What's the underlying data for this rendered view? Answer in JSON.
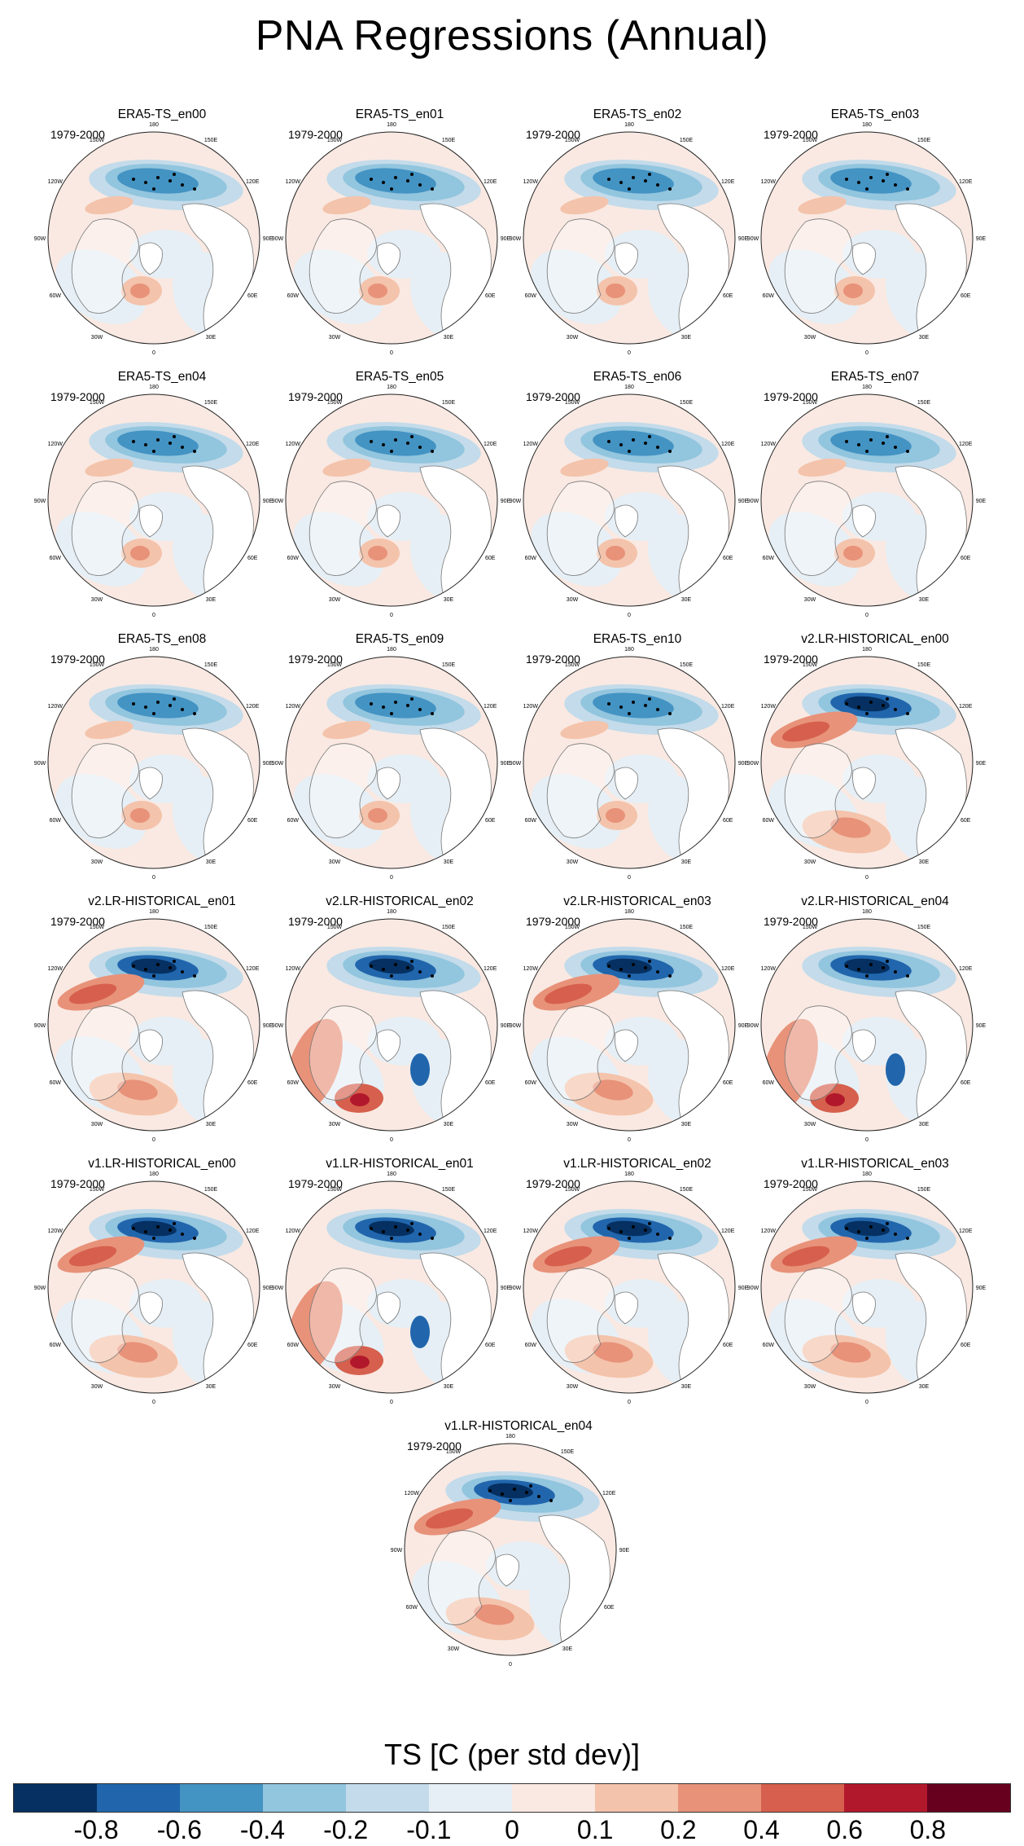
{
  "title": "PNA Regressions (Annual)",
  "period": "1979-2000",
  "lon_labels": {
    "lon_180": "180",
    "lon_150e": "150E",
    "lon_120e": "120E",
    "lon_90e": "90E",
    "lon_60e": "60E",
    "lon_30e": "30E",
    "lon_0": "0",
    "lon_30w": "30W",
    "lon_60w": "60W",
    "lon_90w": "90W",
    "lon_120w": "120W",
    "lon_150w": "150W"
  },
  "panels": [
    {
      "name": "ERA5-TS_en00",
      "style": "era5"
    },
    {
      "name": "ERA5-TS_en01",
      "style": "era5"
    },
    {
      "name": "ERA5-TS_en02",
      "style": "era5"
    },
    {
      "name": "ERA5-TS_en03",
      "style": "era5"
    },
    {
      "name": "ERA5-TS_en04",
      "style": "era5"
    },
    {
      "name": "ERA5-TS_en05",
      "style": "era5"
    },
    {
      "name": "ERA5-TS_en06",
      "style": "era5"
    },
    {
      "name": "ERA5-TS_en07",
      "style": "era5"
    },
    {
      "name": "ERA5-TS_en08",
      "style": "era5"
    },
    {
      "name": "ERA5-TS_en09",
      "style": "era5"
    },
    {
      "name": "ERA5-TS_en10",
      "style": "era5"
    },
    {
      "name": "v2.LR-HISTORICAL_en00",
      "style": "model"
    },
    {
      "name": "v2.LR-HISTORICAL_en01",
      "style": "model"
    },
    {
      "name": "v2.LR-HISTORICAL_en02",
      "style": "model_alt"
    },
    {
      "name": "v2.LR-HISTORICAL_en03",
      "style": "model"
    },
    {
      "name": "v2.LR-HISTORICAL_en04",
      "style": "model_alt"
    },
    {
      "name": "v1.LR-HISTORICAL_en00",
      "style": "model"
    },
    {
      "name": "v1.LR-HISTORICAL_en01",
      "style": "model_alt"
    },
    {
      "name": "v1.LR-HISTORICAL_en02",
      "style": "model"
    },
    {
      "name": "v1.LR-HISTORICAL_en03",
      "style": "model"
    },
    {
      "name": "v1.LR-HISTORICAL_en04",
      "style": "model"
    }
  ],
  "colorbar": {
    "title": "TS [C (per std dev)]",
    "colors": [
      "#053061",
      "#2166ac",
      "#4393c3",
      "#92c5de",
      "#c3dbea",
      "#e6eff5",
      "#f9e9e2",
      "#f4c3ab",
      "#e8927a",
      "#d6604d",
      "#b2182b",
      "#67001f"
    ],
    "labels": [
      "-0.8",
      "-0.6",
      "-0.4",
      "-0.2",
      "-0.1",
      "0",
      "0.1",
      "0.2",
      "0.4",
      "0.6",
      "0.8"
    ]
  },
  "chart_data": {
    "type": "heatmap",
    "title": "PNA Regressions (Annual)",
    "variable": "TS [C (per std dev)]",
    "period": "1979-2000",
    "panel_count": 21,
    "projection": "north polar stereographic",
    "contour_levels": [
      -0.8,
      -0.6,
      -0.4,
      -0.2,
      -0.1,
      0,
      0.1,
      0.2,
      0.4,
      0.6,
      0.8
    ]
  }
}
